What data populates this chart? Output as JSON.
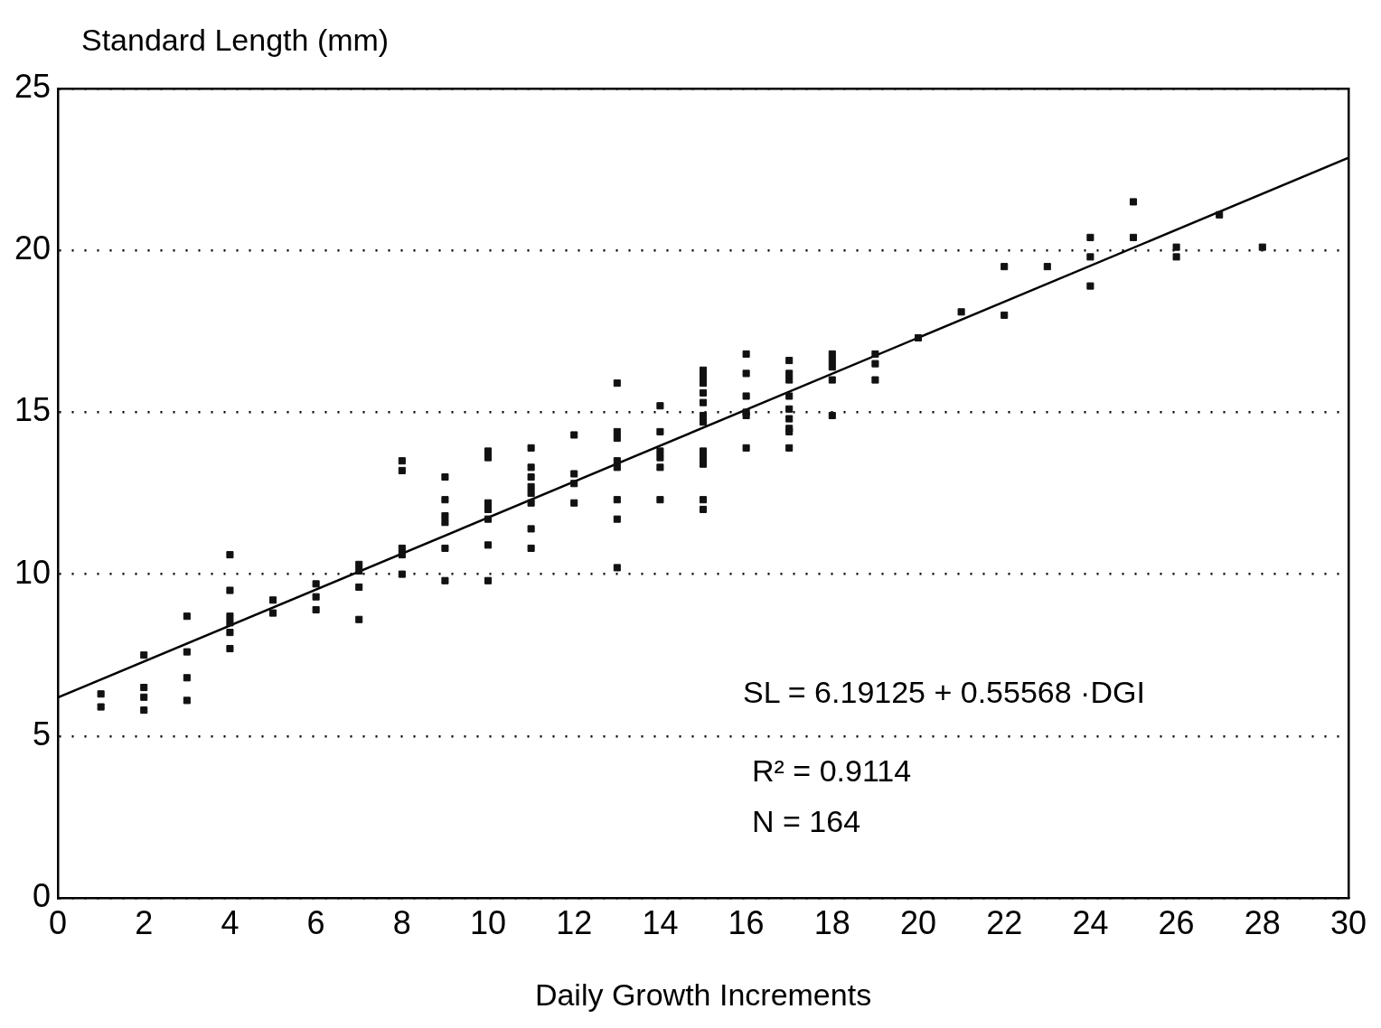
{
  "chart_data": {
    "type": "scatter",
    "ylabel": "Standard Length (mm)",
    "xlabel": "Daily Growth Increments",
    "xlim": [
      0,
      30
    ],
    "xticks": [
      0,
      2,
      4,
      6,
      8,
      10,
      12,
      14,
      16,
      18,
      20,
      22,
      24,
      26,
      28,
      30
    ],
    "ylim": [
      0,
      25
    ],
    "yticks": [
      0,
      5,
      10,
      15,
      20,
      25
    ],
    "grid": "y",
    "legend": false,
    "annotations": [
      "SL = 6.19125 + 0.55568 ·DGI",
      "R² = 0.9114",
      "N = 164"
    ],
    "series": [
      {
        "type": "scatter",
        "marker": "square",
        "color": "#111111",
        "x": [
          1,
          1,
          2,
          2,
          2,
          2,
          3,
          3,
          3,
          3,
          4,
          4,
          4,
          4,
          4,
          4,
          5,
          5,
          6,
          6,
          6,
          7,
          7,
          7,
          7,
          8,
          8,
          8,
          8,
          8,
          9,
          9,
          9,
          9,
          9,
          9,
          10,
          10,
          10,
          10,
          10,
          10,
          10,
          11,
          11,
          11,
          11,
          11,
          11,
          11,
          11,
          12,
          12,
          12,
          12,
          13,
          13,
          13,
          13,
          13,
          13,
          13,
          13,
          14,
          14,
          14,
          14,
          14,
          14,
          15,
          15,
          15,
          15,
          15,
          15,
          15,
          15,
          15,
          15,
          15,
          15,
          16,
          16,
          16,
          16,
          16,
          16,
          17,
          17,
          17,
          17,
          17,
          17,
          17,
          17,
          17,
          18,
          18,
          18,
          18,
          18,
          19,
          19,
          19,
          20,
          21,
          22,
          22,
          23,
          24,
          24,
          24,
          25,
          25,
          26,
          26,
          27,
          28
        ],
        "values": [
          6.3,
          5.9,
          7.5,
          6.5,
          6.2,
          5.8,
          8.7,
          7.6,
          6.8,
          6.1,
          10.6,
          9.5,
          8.7,
          8.5,
          8.2,
          7.7,
          9.2,
          8.8,
          9.7,
          9.3,
          8.9,
          10.3,
          10.1,
          9.6,
          8.6,
          13.5,
          13.2,
          10.8,
          10.6,
          10.0,
          13.0,
          12.3,
          11.8,
          11.6,
          10.8,
          9.8,
          13.8,
          13.6,
          12.2,
          12.0,
          11.7,
          10.9,
          9.8,
          13.9,
          13.3,
          13.0,
          12.7,
          12.5,
          12.2,
          11.4,
          10.8,
          14.3,
          13.1,
          12.8,
          12.2,
          15.9,
          14.4,
          14.2,
          13.5,
          13.3,
          12.3,
          11.7,
          10.2,
          15.2,
          14.4,
          13.8,
          13.6,
          13.3,
          12.3,
          16.3,
          16.1,
          15.9,
          15.6,
          15.3,
          14.9,
          14.7,
          13.8,
          13.6,
          13.4,
          12.3,
          12.0,
          16.8,
          16.2,
          15.5,
          15.0,
          14.9,
          13.9,
          16.6,
          16.2,
          16.0,
          15.5,
          15.1,
          14.8,
          14.5,
          14.4,
          13.9,
          16.8,
          16.6,
          16.4,
          16.0,
          14.9,
          16.8,
          16.5,
          16.0,
          17.3,
          18.1,
          19.5,
          18.0,
          19.5,
          20.4,
          19.8,
          18.9,
          21.5,
          20.4,
          20.1,
          19.8,
          21.1,
          20.1
        ]
      },
      {
        "type": "line",
        "marker": "none",
        "color": "#000000",
        "x": [
          0,
          30
        ],
        "values": [
          6.19,
          22.86
        ]
      }
    ]
  }
}
